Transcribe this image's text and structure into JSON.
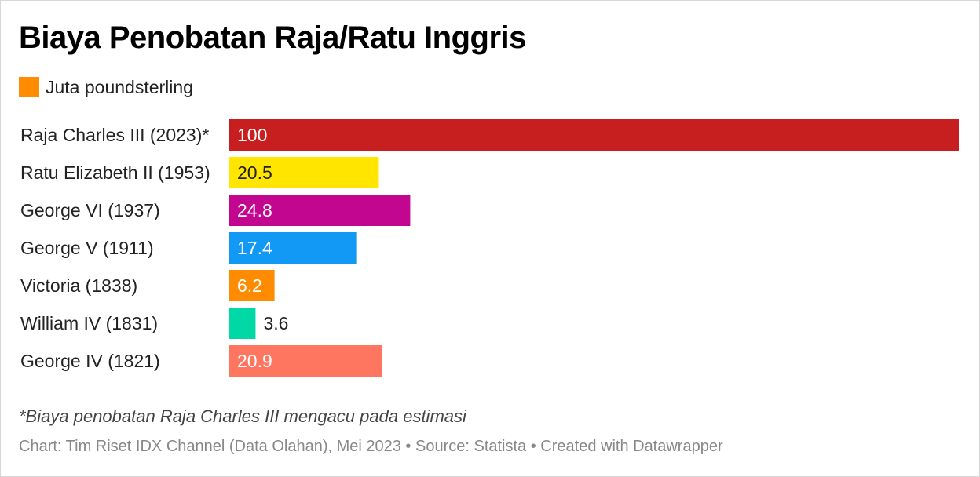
{
  "title": "Biaya Penobatan Raja/Ratu Inggris",
  "legend": {
    "label": "Juta poundsterling",
    "color": "#FF8C00"
  },
  "footnote": "*Biaya penobatan Raja Charles III mengacu pada estimasi",
  "source": "Chart: Tim Riset IDX Channel (Data Olahan), Mei 2023 • Source: Statista • Created with Datawrapper",
  "chart_data": {
    "type": "bar",
    "orientation": "horizontal",
    "title": "Biaya Penobatan Raja/Ratu Inggris",
    "xlim": [
      0,
      100
    ],
    "grid": false,
    "legend_position": "top-left",
    "categories": [
      "Raja Charles III (2023)*",
      "Ratu Elizabeth II (1953)",
      "George VI (1937)",
      "George V (1911)",
      "Victoria (1838)",
      "William IV (1831)",
      "George IV (1821)"
    ],
    "series": [
      {
        "name": "Juta poundsterling",
        "values": [
          100,
          20.5,
          24.8,
          17.4,
          6.2,
          3.6,
          20.9
        ]
      }
    ],
    "value_labels": [
      "100",
      "20.5",
      "24.8",
      "17.4",
      "6.2",
      "3.6",
      "20.9"
    ],
    "bar_colors": [
      "#C71F1F",
      "#FFE500",
      "#C20690",
      "#1199F5",
      "#FF8C00",
      "#00D9A6",
      "#FF7660"
    ],
    "label_colors": [
      "#FFFFFF",
      "#222222",
      "#FFFFFF",
      "#FFFFFF",
      "#FFFFFF",
      "#222222",
      "#FFFFFF"
    ]
  }
}
